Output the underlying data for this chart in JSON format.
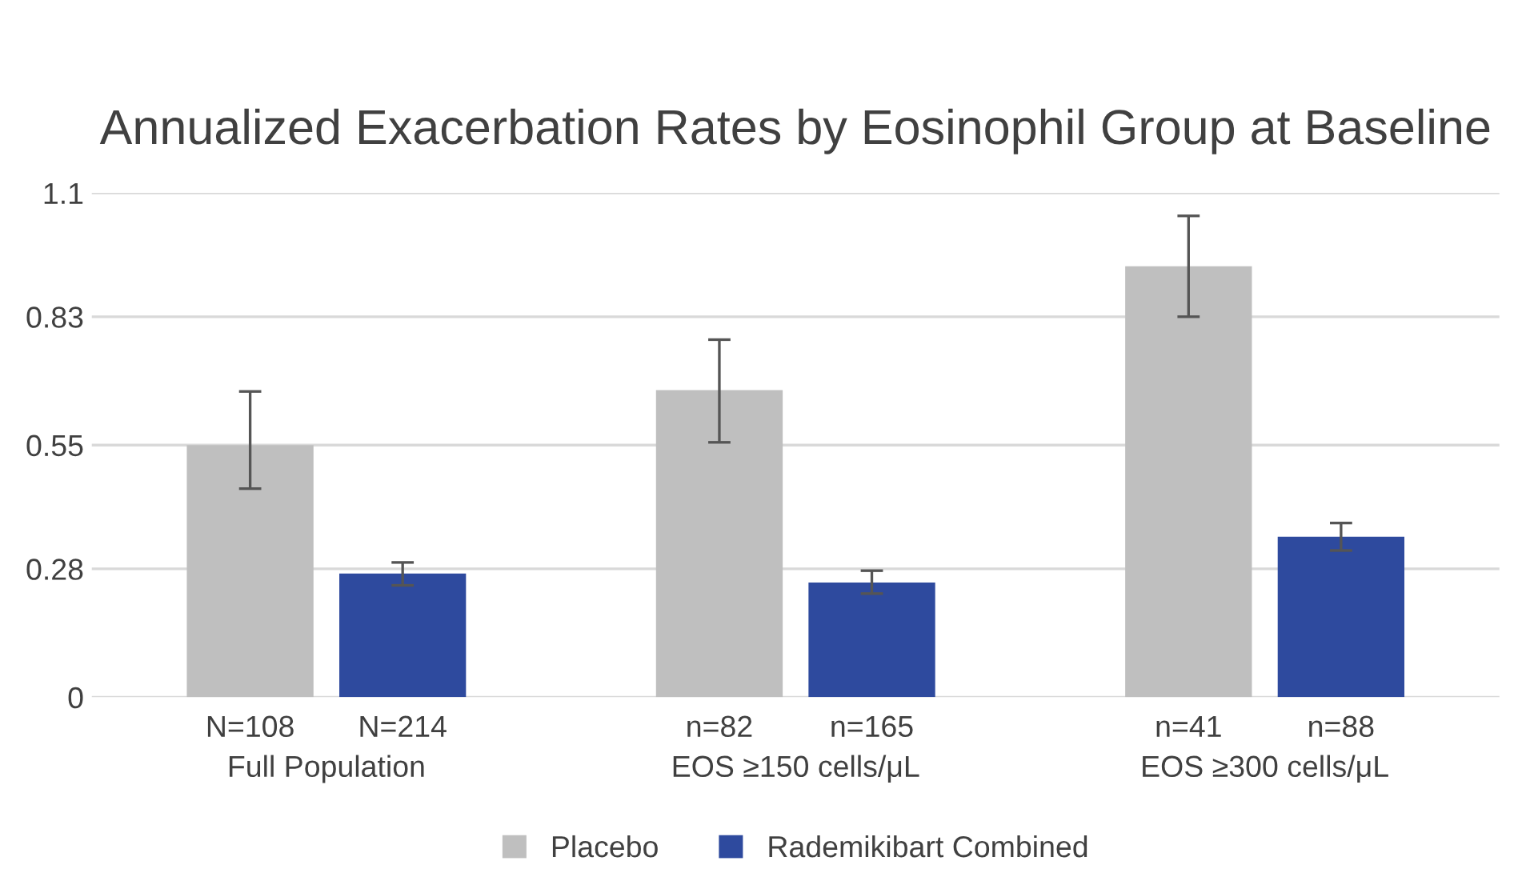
{
  "chart_data": {
    "type": "bar",
    "title": "Annualized Exacerbation Rates by Eosinophil Group at Baseline",
    "categories": [
      "Full Population",
      "EOS ≥150 cells/μL",
      "EOS ≥300 cells/μL"
    ],
    "series": [
      {
        "name": "Placebo",
        "color": "#bfbfbf",
        "values": [
          0.55,
          0.67,
          0.94
        ],
        "errors": [
          [
            0.455,
            0.667
          ],
          [
            0.556,
            0.78
          ],
          [
            0.83,
            1.05
          ]
        ]
      },
      {
        "name": "Rademikibart Combined",
        "color": "#2e4a9e",
        "values": [
          0.27,
          0.25,
          0.35
        ],
        "errors": [
          [
            0.244,
            0.294
          ],
          [
            0.226,
            0.276
          ],
          [
            0.32,
            0.38
          ]
        ]
      }
    ],
    "annotations": [
      "N=108",
      "N=214",
      "n=82",
      "n=165",
      "n=41",
      "n=88"
    ],
    "ylim": [
      0,
      1.1
    ],
    "yticks": [
      0,
      0.28,
      0.55,
      0.83,
      1.1
    ],
    "grid": "y",
    "legend": "bottom"
  }
}
